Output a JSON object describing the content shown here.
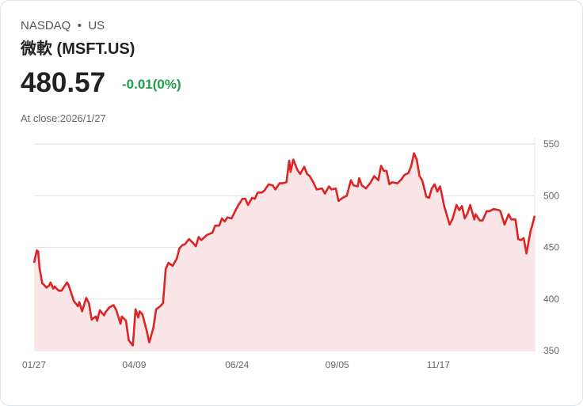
{
  "header": {
    "exchange": "NASDAQ",
    "separator": "•",
    "market": "US",
    "name": "微軟 (MSFT.US)",
    "price": "480.57",
    "change": "-0.01(0%)",
    "close_label": "At close:2026/1/27"
  },
  "colors": {
    "line": "#dd2424",
    "fill": "#fae6e6",
    "change": "#1e9e4a"
  },
  "chart_data": {
    "type": "area",
    "title": "",
    "xlabel": "",
    "ylabel": "",
    "ylim": [
      350,
      550
    ],
    "y_ticks": [
      "550",
      "500",
      "450",
      "400",
      "350"
    ],
    "x_ticks": [
      {
        "label": "01/27",
        "day": 0
      },
      {
        "label": "04/09",
        "day": 73
      },
      {
        "label": "06/24",
        "day": 148
      },
      {
        "label": "09/05",
        "day": 221
      },
      {
        "label": "11/17",
        "day": 295
      }
    ],
    "x_unit": "days since 2025/01/27",
    "points": [
      [
        0,
        435
      ],
      [
        2,
        447
      ],
      [
        3,
        446
      ],
      [
        4,
        430
      ],
      [
        6,
        415
      ],
      [
        7,
        414
      ],
      [
        9,
        411
      ],
      [
        11,
        413
      ],
      [
        12,
        416
      ],
      [
        14,
        410
      ],
      [
        15,
        412
      ],
      [
        18,
        408
      ],
      [
        20,
        408
      ],
      [
        24,
        416
      ],
      [
        25,
        414
      ],
      [
        27,
        406
      ],
      [
        29,
        398
      ],
      [
        32,
        393
      ],
      [
        33,
        397
      ],
      [
        35,
        388
      ],
      [
        38,
        401
      ],
      [
        40,
        396
      ],
      [
        42,
        380
      ],
      [
        45,
        383
      ],
      [
        46,
        379
      ],
      [
        48,
        389
      ],
      [
        51,
        384
      ],
      [
        52,
        387
      ],
      [
        55,
        392
      ],
      [
        58,
        394
      ],
      [
        60,
        389
      ],
      [
        63,
        376
      ],
      [
        64,
        383
      ],
      [
        67,
        379
      ],
      [
        69,
        360
      ],
      [
        72,
        355
      ],
      [
        74,
        390
      ],
      [
        76,
        382
      ],
      [
        77,
        388
      ],
      [
        79,
        385
      ],
      [
        82,
        370
      ],
      [
        84,
        358
      ],
      [
        87,
        372
      ],
      [
        89,
        390
      ],
      [
        92,
        393
      ],
      [
        94,
        396
      ],
      [
        96,
        429
      ],
      [
        98,
        435
      ],
      [
        101,
        432
      ],
      [
        104,
        439
      ],
      [
        106,
        449
      ],
      [
        108,
        452
      ],
      [
        110,
        453
      ],
      [
        113,
        458
      ],
      [
        116,
        454
      ],
      [
        118,
        451
      ],
      [
        120,
        460
      ],
      [
        122,
        457
      ],
      [
        126,
        462
      ],
      [
        130,
        464
      ],
      [
        132,
        471
      ],
      [
        135,
        471
      ],
      [
        137,
        478
      ],
      [
        139,
        475
      ],
      [
        141,
        479
      ],
      [
        144,
        478
      ],
      [
        147,
        486
      ],
      [
        149,
        491
      ],
      [
        152,
        497
      ],
      [
        154,
        497
      ],
      [
        156,
        491
      ],
      [
        159,
        498
      ],
      [
        161,
        497
      ],
      [
        163,
        503
      ],
      [
        166,
        503
      ],
      [
        168,
        505
      ],
      [
        171,
        511
      ],
      [
        174,
        510
      ],
      [
        176,
        506
      ],
      [
        179,
        512
      ],
      [
        181,
        512
      ],
      [
        184,
        513
      ],
      [
        186,
        534
      ],
      [
        187,
        523
      ],
      [
        189,
        535
      ],
      [
        192,
        525
      ],
      [
        194,
        521
      ],
      [
        197,
        528
      ],
      [
        199,
        521
      ],
      [
        201,
        519
      ],
      [
        204,
        512
      ],
      [
        206,
        506
      ],
      [
        210,
        507
      ],
      [
        212,
        502
      ],
      [
        215,
        509
      ],
      [
        217,
        506
      ],
      [
        220,
        507
      ],
      [
        222,
        495
      ],
      [
        225,
        498
      ],
      [
        228,
        500
      ],
      [
        231,
        515
      ],
      [
        233,
        510
      ],
      [
        236,
        509
      ],
      [
        237,
        517
      ],
      [
        239,
        510
      ],
      [
        242,
        507
      ],
      [
        245,
        512
      ],
      [
        248,
        519
      ],
      [
        251,
        515
      ],
      [
        253,
        529
      ],
      [
        255,
        524
      ],
      [
        257,
        524
      ],
      [
        259,
        511
      ],
      [
        261,
        513
      ],
      [
        265,
        512
      ],
      [
        268,
        516
      ],
      [
        270,
        520
      ],
      [
        273,
        522
      ],
      [
        275,
        529
      ],
      [
        277,
        541
      ],
      [
        279,
        535
      ],
      [
        281,
        519
      ],
      [
        283,
        515
      ],
      [
        286,
        499
      ],
      [
        288,
        498
      ],
      [
        290,
        507
      ],
      [
        292,
        511
      ],
      [
        294,
        504
      ],
      [
        296,
        509
      ],
      [
        297,
        503
      ],
      [
        299,
        490
      ],
      [
        303,
        472
      ],
      [
        305,
        477
      ],
      [
        308,
        491
      ],
      [
        310,
        486
      ],
      [
        312,
        490
      ],
      [
        314,
        478
      ],
      [
        316,
        483
      ],
      [
        318,
        491
      ],
      [
        321,
        477
      ],
      [
        322,
        482
      ],
      [
        325,
        476
      ],
      [
        327,
        476
      ],
      [
        330,
        485
      ],
      [
        332,
        485
      ],
      [
        335,
        487
      ],
      [
        339,
        486
      ],
      [
        340,
        485
      ],
      [
        343,
        472
      ],
      [
        346,
        482
      ],
      [
        348,
        477
      ],
      [
        351,
        477
      ],
      [
        353,
        458
      ],
      [
        355,
        457
      ],
      [
        357,
        459
      ],
      [
        359,
        444
      ],
      [
        362,
        466
      ],
      [
        363,
        470
      ],
      [
        365,
        480.57
      ]
    ]
  }
}
